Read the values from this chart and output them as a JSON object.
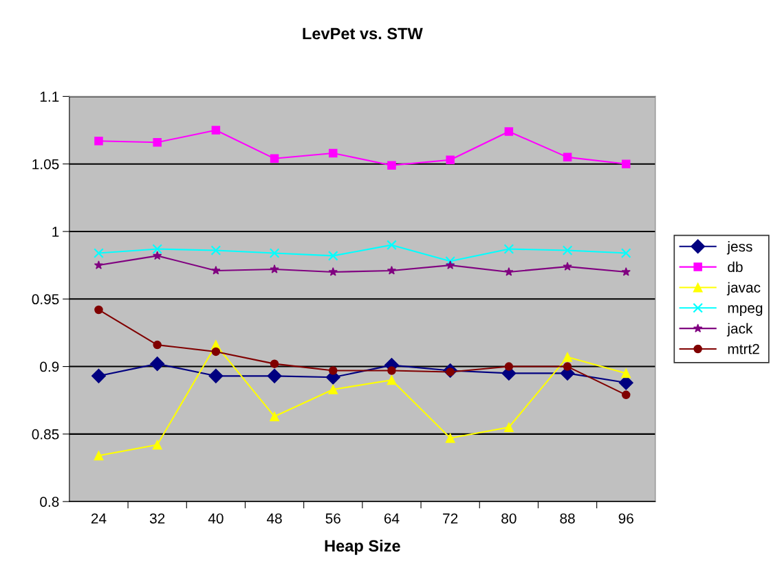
{
  "chart_data": {
    "type": "line",
    "title": "LevPet vs. STW",
    "xlabel": "Heap Size",
    "categories": [
      "24",
      "32",
      "40",
      "48",
      "56",
      "64",
      "72",
      "80",
      "88",
      "96"
    ],
    "ylim": [
      0.8,
      1.1
    ],
    "yticks": [
      0.8,
      0.85,
      0.9,
      0.95,
      1,
      1.05,
      1.1
    ],
    "grid": "y",
    "legend": "right",
    "series": [
      {
        "name": "jess",
        "color": "#000080",
        "marker": "diamond",
        "values": [
          0.893,
          0.902,
          0.893,
          0.893,
          0.892,
          0.901,
          0.897,
          0.895,
          0.895,
          0.888
        ]
      },
      {
        "name": "db",
        "color": "#ff00ff",
        "marker": "square",
        "values": [
          1.067,
          1.066,
          1.075,
          1.054,
          1.058,
          1.049,
          1.053,
          1.074,
          1.055,
          1.05
        ]
      },
      {
        "name": "javac",
        "color": "#ffff00",
        "marker": "triangle",
        "values": [
          0.834,
          0.842,
          0.916,
          0.863,
          0.883,
          0.89,
          0.847,
          0.855,
          0.907,
          0.895
        ]
      },
      {
        "name": "mpeg",
        "color": "#00ffff",
        "marker": "cross",
        "values": [
          0.984,
          0.987,
          0.986,
          0.984,
          0.982,
          0.99,
          0.978,
          0.987,
          0.986,
          0.984
        ]
      },
      {
        "name": "jack",
        "color": "#800080",
        "marker": "star",
        "values": [
          0.975,
          0.982,
          0.971,
          0.972,
          0.97,
          0.971,
          0.975,
          0.97,
          0.974,
          0.97
        ]
      },
      {
        "name": "mtrt2",
        "color": "#800000",
        "marker": "circle",
        "values": [
          0.942,
          0.916,
          0.911,
          0.902,
          0.897,
          0.897,
          0.896,
          0.9,
          0.9,
          0.879
        ]
      }
    ]
  }
}
